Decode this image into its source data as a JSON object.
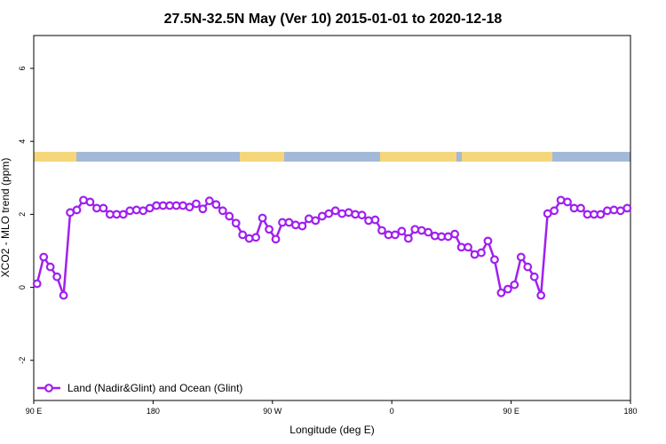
{
  "chart_data": {
    "type": "line",
    "title": "27.5N-32.5N May (Ver 10)   2015-01-01 to 2020-12-18",
    "x_label": "Longitude (deg E)",
    "y_label": "XCO2 - MLO trend (ppm)",
    "xlim": [
      90,
      540
    ],
    "ylim": [
      -3.1,
      6.9
    ],
    "xticks": [
      {
        "value": 90,
        "label": "90 E"
      },
      180,
      {
        "value": 270,
        "label": "90 W"
      },
      {
        "value": 360,
        "label": "0"
      },
      {
        "value": 450,
        "label": "90 E"
      },
      {
        "value": 540,
        "label": "180"
      }
    ],
    "yticks": [
      -2,
      0,
      2,
      4,
      6
    ],
    "grid": false,
    "legend": "bottom-left",
    "x": [
      92.5,
      97.5,
      102.5,
      107.5,
      112.5,
      117.5,
      122.5,
      127.5,
      132.5,
      137.5,
      142.5,
      147.5,
      152.5,
      157.5,
      162.5,
      167.5,
      172.5,
      177.5,
      182.5,
      187.5,
      192.5,
      197.5,
      202.5,
      207.5,
      212.5,
      217.5,
      222.5,
      227.5,
      232.5,
      237.5,
      242.5,
      247.5,
      252.5,
      257.5,
      262.5,
      267.5,
      272.5,
      277.5,
      282.5,
      287.5,
      292.5,
      297.5,
      302.5,
      307.5,
      312.5,
      317.5,
      322.5,
      327.5,
      332.5,
      337.5,
      342.5,
      347.5,
      352.5,
      357.5,
      362.5,
      367.5,
      372.5,
      377.5,
      382.5,
      387.5,
      392.5,
      397.5,
      402.5,
      407.5,
      412.5,
      417.5,
      422.5,
      427.5,
      432.5,
      437.5,
      442.5,
      447.5,
      452.5,
      457.5,
      462.5,
      467.5,
      472.5,
      477.5,
      482.5,
      487.5,
      492.5,
      497.5,
      502.5,
      507.5,
      512.5,
      517.5,
      522.5,
      527.5,
      532.5,
      537.5
    ],
    "series": [
      {
        "name": "Land (Nadir&Glint) and Ocean (Glint)",
        "color": "#a020f0",
        "values": [
          0.1,
          0.83,
          0.56,
          0.29,
          -0.22,
          2.05,
          2.12,
          2.39,
          2.34,
          2.17,
          2.17,
          2.0,
          2.0,
          2.0,
          2.1,
          2.12,
          2.1,
          2.17,
          2.24,
          2.24,
          2.24,
          2.24,
          2.24,
          2.2,
          2.29,
          2.15,
          2.37,
          2.27,
          2.1,
          1.95,
          1.76,
          1.44,
          1.34,
          1.37,
          1.9,
          1.59,
          1.32,
          1.78,
          1.78,
          1.71,
          1.68,
          1.88,
          1.83,
          1.95,
          2.02,
          2.1,
          2.02,
          2.05,
          2.0,
          1.98,
          1.83,
          1.85,
          1.56,
          1.44,
          1.44,
          1.54,
          1.34,
          1.59,
          1.56,
          1.51,
          1.41,
          1.39,
          1.39,
          1.46,
          1.1,
          1.1,
          0.9,
          0.95,
          1.27,
          0.76,
          -0.15,
          -0.05,
          0.07,
          0.83,
          0.56,
          0.29,
          -0.22,
          2.02,
          2.1,
          2.39,
          2.34,
          2.17,
          2.17,
          2.0,
          2.0,
          2.0,
          2.1,
          2.12,
          2.1,
          2.17
        ]
      }
    ]
  }
}
